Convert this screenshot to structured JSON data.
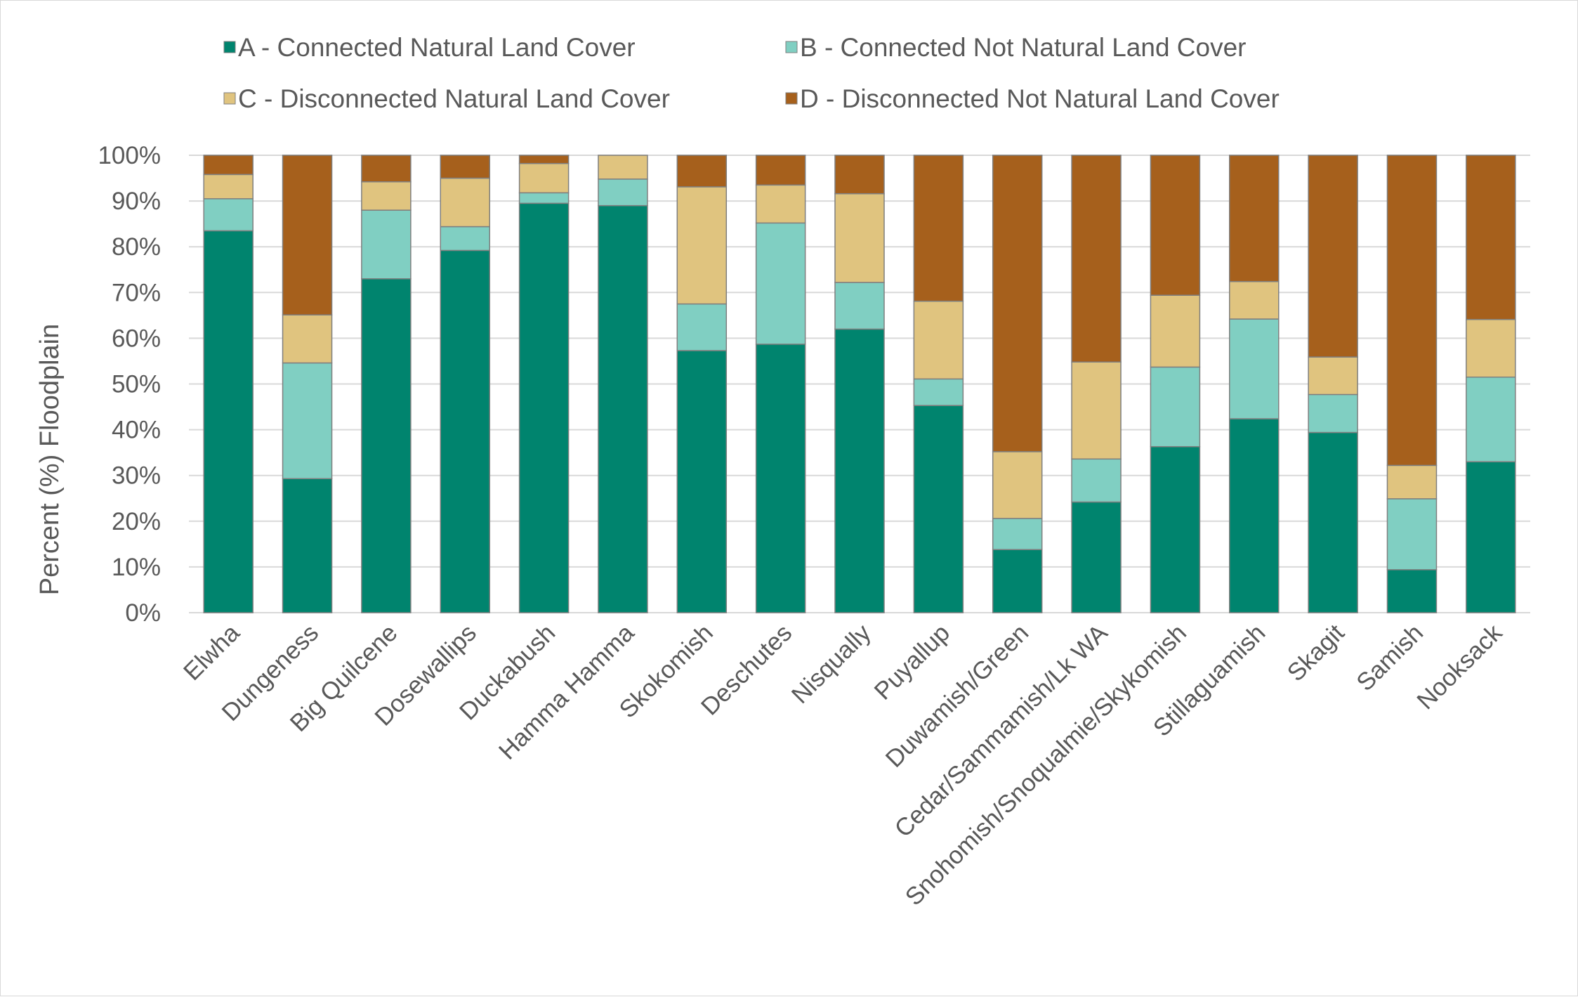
{
  "chart_data": {
    "type": "bar",
    "stacked": true,
    "percent": true,
    "ylabel": "Percent (%) Floodplain",
    "ylim": [
      0,
      100
    ],
    "yticks": [
      "0%",
      "10%",
      "20%",
      "30%",
      "40%",
      "50%",
      "60%",
      "70%",
      "80%",
      "90%",
      "100%"
    ],
    "grid": true,
    "legend_position": "top",
    "categories": [
      "Elwha",
      "Dungeness",
      "Big Quilcene",
      "Dosewallips",
      "Duckabush",
      "Hamma Hamma",
      "Skokomish",
      "Deschutes",
      "Nisqually",
      "Puyallup",
      "Duwamish/Green",
      "Cedar/Sammamish/Lk WA",
      "Snohomish/Snoqualmie/Skykomish",
      "Stillaguamish",
      "Skagit",
      "Samish",
      "Nooksack"
    ],
    "series": [
      {
        "name": "A - Connected Natural Land Cover",
        "color": "#00846e",
        "values": [
          83.5,
          29.3,
          73.0,
          79.2,
          89.5,
          89.0,
          57.3,
          58.7,
          62.0,
          45.3,
          13.8,
          24.2,
          36.3,
          42.4,
          39.4,
          9.4,
          33.0
        ]
      },
      {
        "name": "B - Connected Not Natural Land Cover",
        "color": "#80cfc2",
        "values": [
          7.0,
          25.3,
          15.0,
          5.2,
          2.3,
          5.8,
          10.2,
          26.5,
          10.2,
          5.8,
          6.8,
          9.4,
          17.4,
          21.8,
          8.3,
          15.5,
          18.5
        ]
      },
      {
        "name": "C - Disconnected Natural Land Cover",
        "color": "#e0c47f",
        "values": [
          5.3,
          10.5,
          6.2,
          10.6,
          6.4,
          5.2,
          25.6,
          8.3,
          19.4,
          17.0,
          14.6,
          21.2,
          15.7,
          8.2,
          8.2,
          7.3,
          12.6
        ]
      },
      {
        "name": "D - Disconnected Not Natural Land Cover",
        "color": "#a6601c",
        "values": [
          4.2,
          34.9,
          5.8,
          5.0,
          1.8,
          0.0,
          6.9,
          6.5,
          8.4,
          31.9,
          64.8,
          45.2,
          30.6,
          27.6,
          44.1,
          67.8,
          35.9
        ]
      }
    ]
  }
}
